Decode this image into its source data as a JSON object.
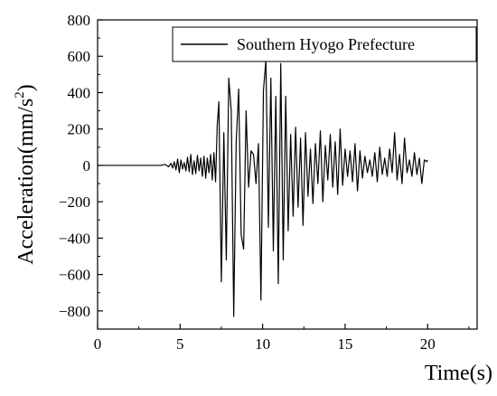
{
  "chart_data": {
    "type": "line",
    "title": "",
    "xlabel": "Time(s)",
    "ylabel_main": "Acceleration(mm/s",
    "ylabel_sup": "2",
    "ylabel_close": ")",
    "xlim": [
      0,
      23
    ],
    "ylim": [
      -900,
      800
    ],
    "xticks": [
      0,
      5,
      10,
      15,
      20
    ],
    "yticks": [
      -800,
      -600,
      -400,
      -200,
      0,
      200,
      400,
      600,
      800
    ],
    "grid": false,
    "legend_position": "top-right",
    "line_color": "#000000",
    "series": [
      {
        "name": "Southern Hyogo Prefecture",
        "x": [
          0,
          1,
          2,
          3,
          3.8,
          4.1,
          4.3,
          4.45,
          4.55,
          4.65,
          4.75,
          4.85,
          4.95,
          5.05,
          5.15,
          5.25,
          5.35,
          5.45,
          5.55,
          5.65,
          5.75,
          5.85,
          5.95,
          6.05,
          6.15,
          6.25,
          6.35,
          6.45,
          6.55,
          6.65,
          6.75,
          6.85,
          6.95,
          7.05,
          7.15,
          7.25,
          7.35,
          7.5,
          7.65,
          7.8,
          7.95,
          8.1,
          8.25,
          8.4,
          8.55,
          8.7,
          8.85,
          9.0,
          9.15,
          9.3,
          9.45,
          9.6,
          9.75,
          9.9,
          10.05,
          10.2,
          10.35,
          10.5,
          10.65,
          10.8,
          10.95,
          11.1,
          11.25,
          11.4,
          11.55,
          11.7,
          11.85,
          12.0,
          12.15,
          12.3,
          12.45,
          12.6,
          12.75,
          12.9,
          13.05,
          13.2,
          13.35,
          13.5,
          13.65,
          13.8,
          13.95,
          14.1,
          14.25,
          14.4,
          14.55,
          14.7,
          14.85,
          15.0,
          15.15,
          15.3,
          15.45,
          15.6,
          15.75,
          15.9,
          16.05,
          16.2,
          16.35,
          16.5,
          16.65,
          16.8,
          16.95,
          17.1,
          17.25,
          17.4,
          17.55,
          17.7,
          17.85,
          18.0,
          18.15,
          18.3,
          18.45,
          18.6,
          18.75,
          18.9,
          19.05,
          19.2,
          19.35,
          19.5,
          19.65,
          19.8,
          19.95,
          20.0
        ],
        "values": [
          0,
          0,
          0,
          0,
          0,
          5,
          -8,
          12,
          -15,
          20,
          -25,
          35,
          -40,
          30,
          -20,
          15,
          -30,
          45,
          -35,
          60,
          -50,
          25,
          -45,
          55,
          -30,
          40,
          -60,
          50,
          -70,
          40,
          -40,
          60,
          -80,
          70,
          -90,
          220,
          350,
          -640,
          180,
          -520,
          480,
          300,
          -830,
          130,
          420,
          -380,
          -460,
          300,
          -120,
          80,
          60,
          -100,
          120,
          -740,
          410,
          580,
          -340,
          480,
          -470,
          380,
          -650,
          560,
          -520,
          380,
          -360,
          170,
          -280,
          210,
          -230,
          150,
          -330,
          180,
          -170,
          90,
          -210,
          120,
          -100,
          190,
          -200,
          110,
          -80,
          170,
          -120,
          130,
          -160,
          200,
          -110,
          90,
          -60,
          80,
          -90,
          120,
          -140,
          80,
          -70,
          50,
          -40,
          30,
          -60,
          70,
          -90,
          100,
          -50,
          40,
          -60,
          90,
          -40,
          180,
          -80,
          60,
          -100,
          150,
          -40,
          30,
          -60,
          70,
          -50,
          40,
          -100,
          30,
          20,
          30
        ]
      }
    ]
  }
}
